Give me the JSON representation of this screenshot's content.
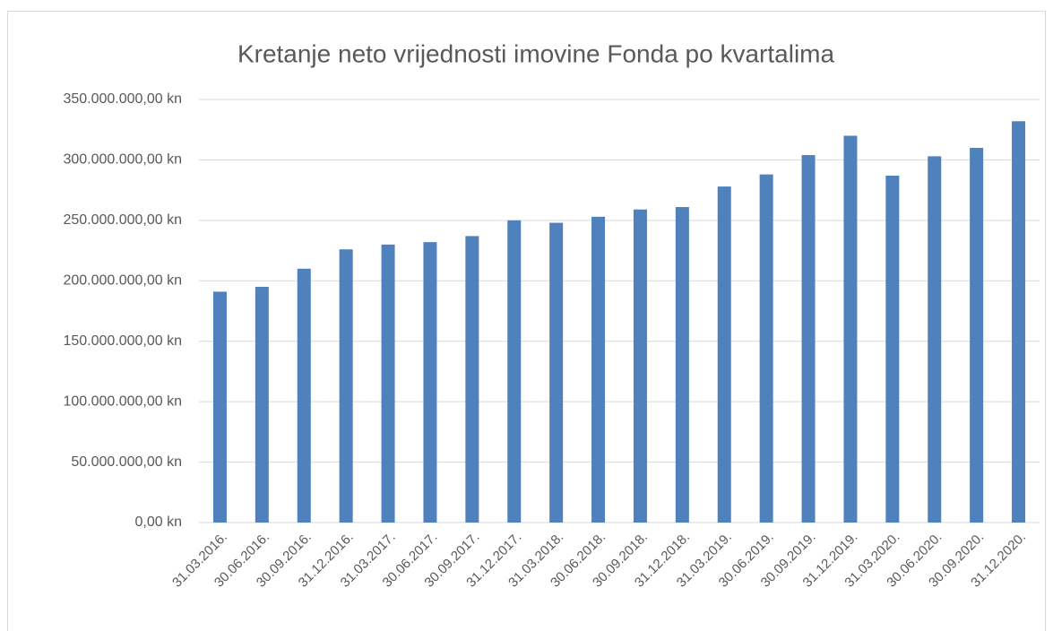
{
  "chart_data": {
    "type": "bar",
    "title": "Kretanje neto vrijednosti imovine Fonda po kvartalima",
    "categories": [
      "31.03.2016.",
      "30.06.2016.",
      "30.09.2016.",
      "31.12.2016.",
      "31.03.2017.",
      "30.06.2017.",
      "30.09.2017.",
      "31.12.2017.",
      "31.03.2018.",
      "30.06.2018.",
      "30.09.2018.",
      "31.12.2018.",
      "31.03.2019.",
      "30.06.2019.",
      "30.09.2019.",
      "31.12.2019.",
      "31.03.2020.",
      "30.06.2020.",
      "30.09.2020.",
      "31.12.2020."
    ],
    "values": [
      191000000,
      195000000,
      210000000,
      226000000,
      230000000,
      232000000,
      237000000,
      250000000,
      248000000,
      253000000,
      259000000,
      261000000,
      278000000,
      288000000,
      304000000,
      320000000,
      287000000,
      303000000,
      310000000,
      332000000
    ],
    "color": "#4f81bd",
    "ylim": [
      0,
      350000000
    ],
    "yticks": [
      {
        "value": 0,
        "label": "0,00 kn"
      },
      {
        "value": 50000000,
        "label": "50.000.000,00 kn"
      },
      {
        "value": 100000000,
        "label": "100.000.000,00 kn"
      },
      {
        "value": 150000000,
        "label": "150.000.000,00 kn"
      },
      {
        "value": 200000000,
        "label": "200.000.000,00 kn"
      },
      {
        "value": 250000000,
        "label": "250.000.000,00 kn"
      },
      {
        "value": 300000000,
        "label": "300.000.000,00 kn"
      },
      {
        "value": 350000000,
        "label": "350.000.000,00 kn"
      }
    ],
    "grid": true
  }
}
